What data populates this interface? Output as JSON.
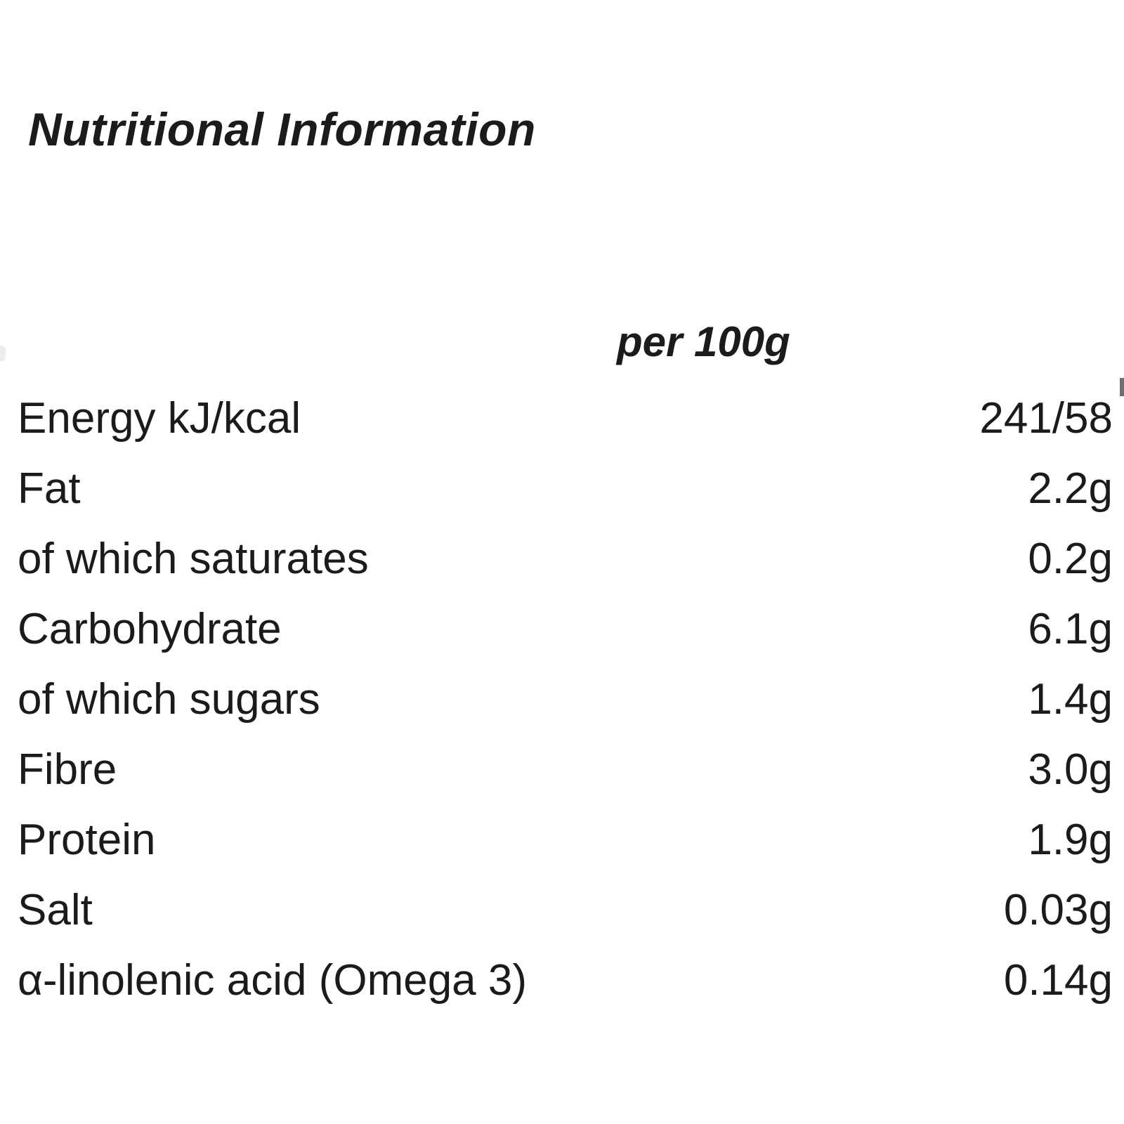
{
  "title": "Nutritional Information",
  "table": {
    "column_header": "per 100g",
    "rows": [
      {
        "label": "Energy kJ/kcal",
        "value": "241/58"
      },
      {
        "label": "Fat",
        "value": "2.2g"
      },
      {
        "label": "of which saturates",
        "value": "0.2g"
      },
      {
        "label": "Carbohydrate",
        "value": "6.1g"
      },
      {
        "label": "of which sugars",
        "value": "1.4g"
      },
      {
        "label": "Fibre",
        "value": "3.0g"
      },
      {
        "label": "Protein",
        "value": "1.9g"
      },
      {
        "label": "Salt",
        "value": "0.03g"
      },
      {
        "label": "α-linolenic acid (Omega 3)",
        "value": "0.14g"
      }
    ]
  },
  "colors": {
    "text": "#1b1b1b",
    "background": "#ffffff"
  }
}
